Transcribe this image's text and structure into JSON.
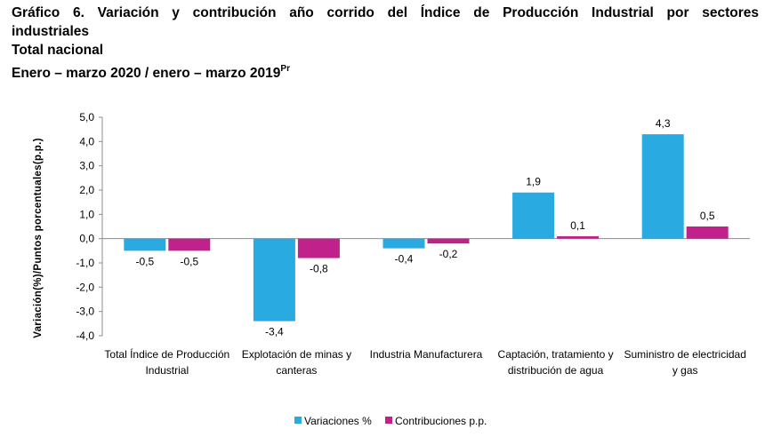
{
  "header": {
    "title_line1": "Gráfico 6. Variación y contribución año corrido del Índice de Producción Industrial por sectores",
    "title_line2": "industriales",
    "subtitle": "Total nacional",
    "period": "Enero – marzo 2020 / enero – marzo 2019",
    "period_sup": "Pr"
  },
  "chart_data": {
    "type": "bar",
    "ylabel": "Variación(%)/Puntos porcentuales(p.p.)",
    "ylim": [
      -4.0,
      5.0
    ],
    "yticks": [
      "5,0",
      "4,0",
      "3,0",
      "2,0",
      "1,0",
      "0,0",
      "-1,0",
      "-2,0",
      "-3,0",
      "-4,0"
    ],
    "ytick_values": [
      5,
      4,
      3,
      2,
      1,
      0,
      -1,
      -2,
      -3,
      -4
    ],
    "categories": [
      [
        "Total Índice de Producción",
        "Industrial"
      ],
      [
        "Explotación de minas y",
        "canteras"
      ],
      [
        "Industria Manufacturera"
      ],
      [
        "Captación, tratamiento y",
        "distribución de agua"
      ],
      [
        "Suministro de electricidad",
        "y gas"
      ]
    ],
    "series": [
      {
        "name": "Variaciones %",
        "color": "#29abe2",
        "values": [
          -0.5,
          -3.4,
          -0.4,
          1.9,
          4.3
        ],
        "labels": [
          "-0,5",
          "-3,4",
          "-0,4",
          "1,9",
          "4,3"
        ]
      },
      {
        "name": "Contribuciones p.p.",
        "color": "#c0218a",
        "values": [
          -0.5,
          -0.8,
          -0.2,
          0.1,
          0.5
        ],
        "labels": [
          "-0,5",
          "-0,8",
          "-0,2",
          "0,1",
          "0,5"
        ]
      }
    ],
    "legend_position": "bottom-center",
    "grid": false
  }
}
